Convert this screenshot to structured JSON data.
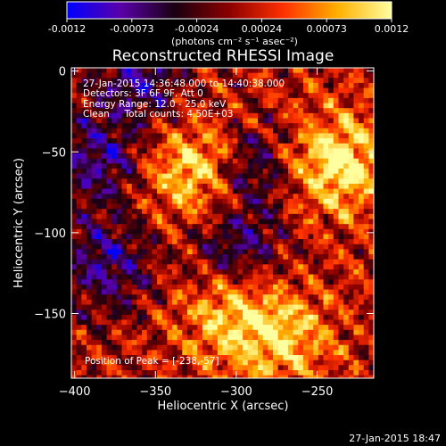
{
  "colorbar": {
    "tick_labels": [
      "-0.0012",
      "-0.00073",
      "-0.00024",
      "0.00024",
      "0.00073",
      "0.0012"
    ],
    "unit_label": "(photons cm⁻² s⁻¹ asec⁻²)",
    "colors": [
      "#0000ff",
      "#5a00a8",
      "#1a0010",
      "#8b0000",
      "#ff3000",
      "#ffb000",
      "#ffffa0"
    ]
  },
  "info": {
    "line1": "27-Jan-2015 14:36:48.000 to 14:40:38.000",
    "line2": "Detectors: 3F 6F 9F, Att 0",
    "line3": "Energy Range: 12.0 - 25.0 keV",
    "line4": "Clean     Total counts: 4.50E+03",
    "peak": "Position of Peak = [-238,-57]"
  },
  "footer_date": "27-Jan-2015 18:47",
  "chart_data": {
    "type": "heatmap",
    "title": "Reconstructed RHESSI Image",
    "xlabel": "Heliocentric X (arcsec)",
    "ylabel": "Heliocentric Y (arcsec)",
    "xlim": [
      -402,
      -215
    ],
    "ylim": [
      -190,
      2
    ],
    "x_ticks": [
      -400,
      -350,
      -300,
      -250
    ],
    "y_ticks": [
      0,
      -50,
      -100,
      -150
    ],
    "color_range": [
      -0.0012,
      0.0012
    ],
    "peak_position": [
      -238,
      -57
    ],
    "bright_sources": [
      {
        "x": -238,
        "y": -57,
        "value": 0.0012
      },
      {
        "x": -325,
        "y": -62,
        "value": 0.0011
      },
      {
        "x": -305,
        "y": -150,
        "value": 0.00085
      },
      {
        "x": -270,
        "y": -165,
        "value": 0.0008
      }
    ]
  }
}
